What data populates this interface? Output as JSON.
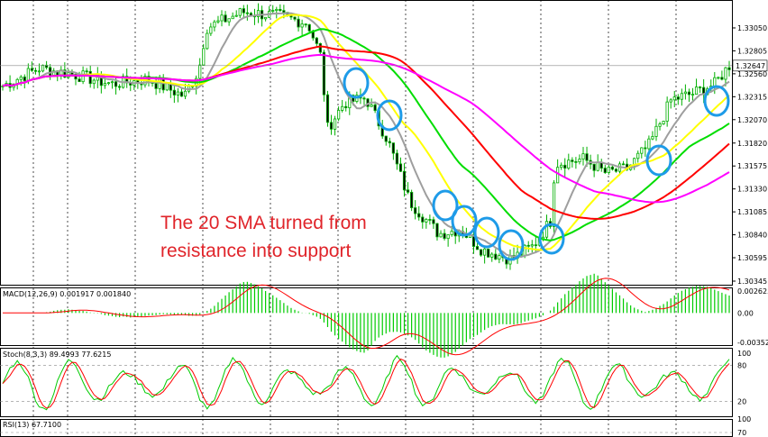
{
  "chart_data": {
    "type": "line",
    "instrument_panes": [
      {
        "id": "price",
        "y_ticks": [
          "1.33050",
          "1.32805",
          "1.32560",
          "1.32315",
          "1.32070",
          "1.31820",
          "1.31575",
          "1.31330",
          "1.31085",
          "1.30840",
          "1.30595",
          "1.30345"
        ],
        "y_range": [
          1.30345,
          1.333
        ],
        "current_price": "1.32647",
        "moving_averages": [
          {
            "name": "SMA 20",
            "color": "#9e9e9e"
          },
          {
            "name": "SMA 50",
            "color": "#ffff00"
          },
          {
            "name": "SMA 100",
            "color": "#00dd00"
          },
          {
            "name": "SMA 200",
            "color": "#ff0000"
          },
          {
            "name": "SMA 240",
            "color": "#ff00ff"
          }
        ],
        "annotation": [
          "The 20 SMA turned from",
          "resistance into support"
        ],
        "highlight_color": "#1e9be8"
      },
      {
        "id": "macd",
        "title": "MACD(12,26,9) 0.001917 0.001840",
        "y_ticks": [
          "0.002625",
          "0.00",
          "-0.00352"
        ],
        "y_range": [
          -0.00352,
          0.002625
        ],
        "colors": {
          "histogram": "#00cc00",
          "signal": "#ff0000"
        }
      },
      {
        "id": "stoch",
        "title": "Stoch(8,3,3) 89.4993 77.6215",
        "y_ticks": [
          "100",
          "80",
          "20",
          "0"
        ],
        "y_range": [
          0,
          100
        ],
        "levels": [
          80,
          20
        ],
        "colors": {
          "main": "#00cc00",
          "signal": "#ff0000"
        }
      },
      {
        "id": "rsi",
        "title": "RSI(13) 67.7100",
        "y_ticks": [
          "100",
          "70"
        ],
        "y_range": [
          0,
          100
        ]
      }
    ],
    "candle_colors": {
      "up": "#00b000",
      "down": "#00b000"
    }
  }
}
